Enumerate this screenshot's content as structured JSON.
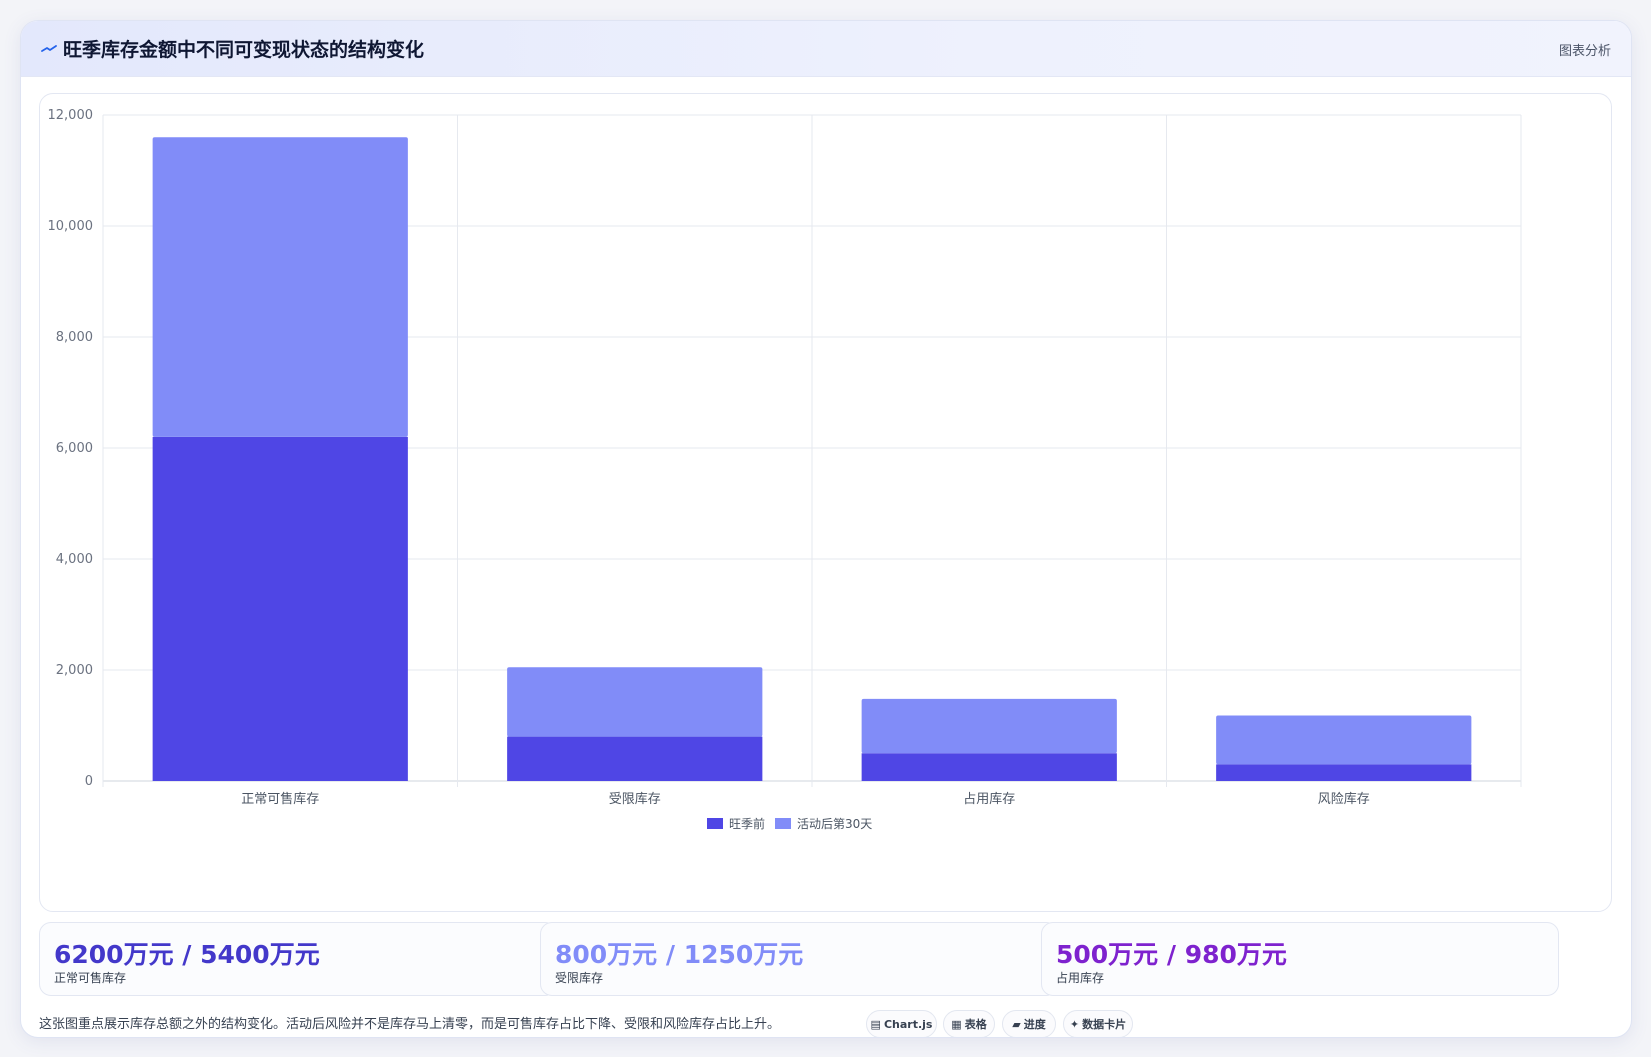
{
  "header": {
    "title": "旺季库存金额中不同可变现状态的结构变化",
    "action": "图表分析"
  },
  "colors": {
    "before": "#4f46e5",
    "after": "#818cf8",
    "stat1": "#4338ca",
    "stat2": "#818cf8",
    "stat3": "#7e22ce"
  },
  "chart_data": {
    "type": "bar",
    "stacked": true,
    "categories": [
      "正常可售库存",
      "受限库存",
      "占用库存",
      "风险库存"
    ],
    "series": [
      {
        "name": "旺季前",
        "values": [
          6200,
          800,
          500,
          300
        ]
      },
      {
        "name": "活动后第30天",
        "values": [
          5400,
          1250,
          980,
          880
        ]
      }
    ],
    "ylim": [
      0,
      12000
    ],
    "yticks": [
      0,
      2000,
      4000,
      6000,
      8000,
      10000,
      12000
    ],
    "ytick_labels": [
      "0",
      "2,000",
      "4,000",
      "6,000",
      "8,000",
      "10,000",
      "12,000"
    ],
    "grid": true,
    "legend": "bottom"
  },
  "stats": [
    {
      "value": "6200万元 / 5400万元",
      "label": "正常可售库存"
    },
    {
      "value": "800万元 / 1250万元",
      "label": "受限库存"
    },
    {
      "value": "500万元 / 980万元",
      "label": "占用库存"
    }
  ],
  "footnote": "这张图重点展示库存总额之外的结构变化。活动后风险并不是库存马上清零，而是可售库存占比下降、受限和风险库存占比上升。",
  "chips": [
    {
      "icon": "chart-icon",
      "glyph": "▤",
      "label": "Chart.js"
    },
    {
      "icon": "table-icon",
      "glyph": "▦",
      "label": "表格"
    },
    {
      "icon": "progress-icon",
      "glyph": "▰",
      "label": "进度"
    },
    {
      "icon": "sparkle-icon",
      "glyph": "✦",
      "label": "数据卡片"
    }
  ]
}
